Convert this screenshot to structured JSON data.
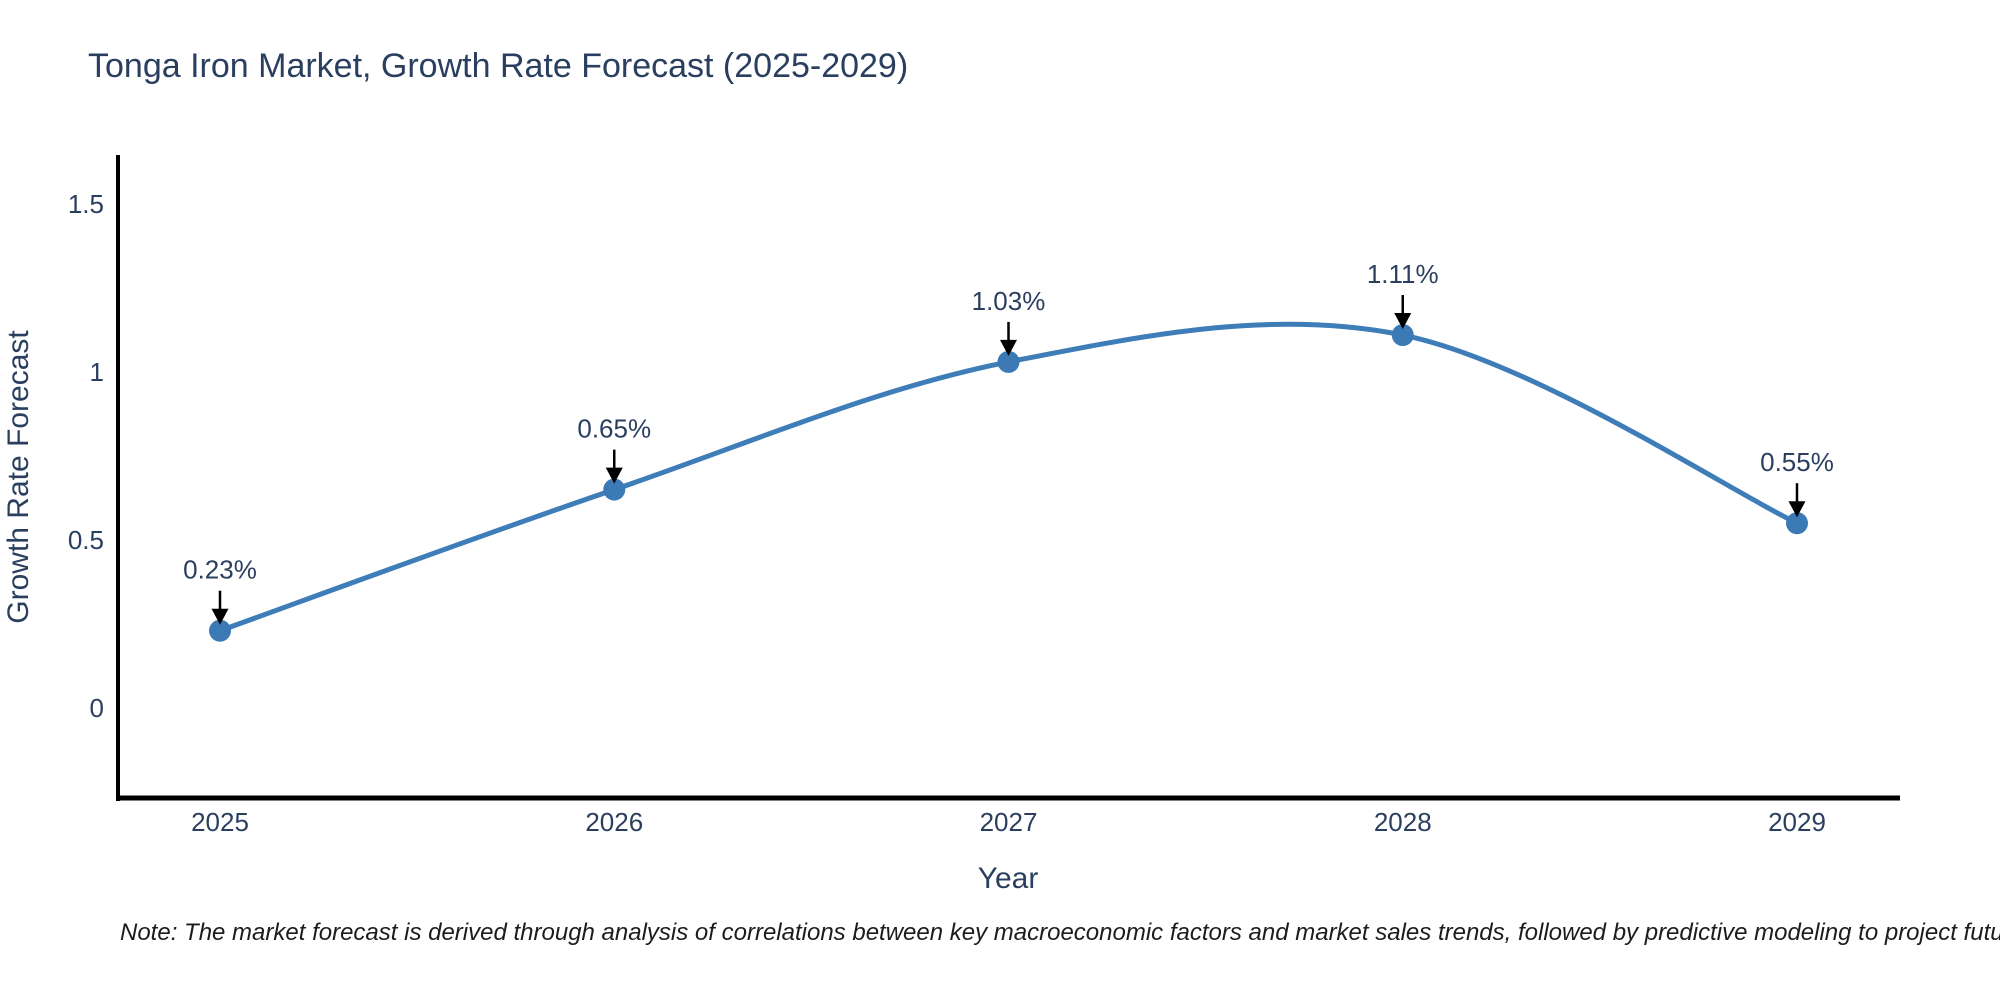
{
  "title": "Tonga Iron Market, Growth Rate Forecast (2025-2029)",
  "note": "Note: The market forecast is derived through analysis of correlations between key macroeconomic factors and market sales trends, followed by predictive modeling to project future sales",
  "chart_data": {
    "type": "line",
    "line_shape": "spline",
    "title": "Tonga Iron Market, Growth Rate Forecast (2025-2029)",
    "xlabel": "Year",
    "ylabel": "Growth Rate Forecast",
    "categories": [
      "2025",
      "2026",
      "2027",
      "2028",
      "2029"
    ],
    "values": [
      0.23,
      0.65,
      1.03,
      1.11,
      0.55
    ],
    "point_labels": [
      "0.23%",
      "0.65%",
      "1.03%",
      "1.11%",
      "0.55%"
    ],
    "ytick_values": [
      0,
      0.5,
      1,
      1.5
    ],
    "ytick_labels": [
      "0",
      "0.5",
      "1",
      "1.5"
    ],
    "ylim": [
      -0.27,
      1.65
    ],
    "grid": false,
    "legend": "none",
    "colors": {
      "line": "#3e7db8",
      "marker": "#3c7ab6",
      "arrow": "#000000",
      "axis": "#000000",
      "text": "#2a3f5f",
      "note_text": "#1c1c1c",
      "background": "#ffffff"
    }
  }
}
